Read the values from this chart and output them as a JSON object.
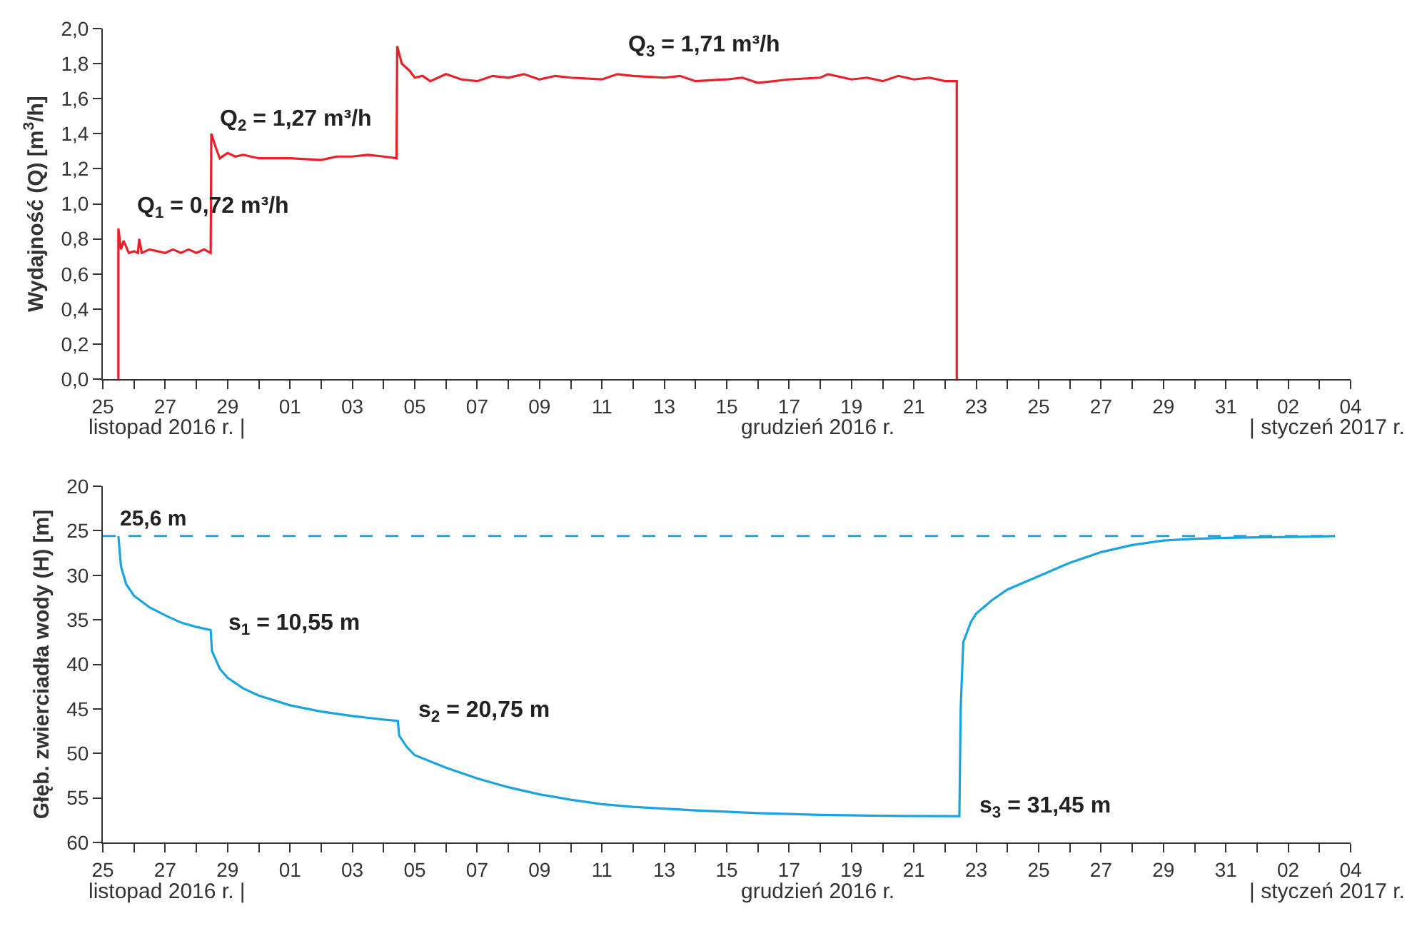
{
  "chart_data": [
    {
      "type": "line",
      "ylabel": "Wydajność (Q) [m$^{3}$/h]",
      "marker": "none",
      "line_style": "solid",
      "xlim": [
        "2016-11-25",
        "2017-01-04"
      ],
      "xticks": [
        {
          "value": "2016-11-25",
          "label": "25"
        },
        {
          "value": "2016-11-26",
          "label": null
        },
        {
          "value": "2016-11-27",
          "label": "27"
        },
        {
          "value": "2016-11-28",
          "label": null
        },
        {
          "value": "2016-11-29",
          "label": "29"
        },
        {
          "value": "2016-11-30",
          "label": null
        },
        {
          "value": "2016-12-01",
          "label": "01"
        },
        {
          "value": "2016-12-02",
          "label": null
        },
        {
          "value": "2016-12-03",
          "label": "03"
        },
        {
          "value": "2016-12-04",
          "label": null
        },
        {
          "value": "2016-12-05",
          "label": "05"
        },
        {
          "value": "2016-12-06",
          "label": null
        },
        {
          "value": "2016-12-07",
          "label": "07"
        },
        {
          "value": "2016-12-08",
          "label": null
        },
        {
          "value": "2016-12-09",
          "label": "09"
        },
        {
          "value": "2016-12-10",
          "label": null
        },
        {
          "value": "2016-12-11",
          "label": "11"
        },
        {
          "value": "2016-12-12",
          "label": null
        },
        {
          "value": "2016-12-13",
          "label": "13"
        },
        {
          "value": "2016-12-14",
          "label": null
        },
        {
          "value": "2016-12-15",
          "label": "15"
        },
        {
          "value": "2016-12-16",
          "label": null
        },
        {
          "value": "2016-12-17",
          "label": "17"
        },
        {
          "value": "2016-12-18",
          "label": null
        },
        {
          "value": "2016-12-19",
          "label": "19"
        },
        {
          "value": "2016-12-20",
          "label": null
        },
        {
          "value": "2016-12-21",
          "label": "21"
        },
        {
          "value": "2016-12-22",
          "label": null
        },
        {
          "value": "2016-12-23",
          "label": "23"
        },
        {
          "value": "2016-12-24",
          "label": null
        },
        {
          "value": "2016-12-25",
          "label": "25"
        },
        {
          "value": "2016-12-26",
          "label": null
        },
        {
          "value": "2016-12-27",
          "label": "27"
        },
        {
          "value": "2016-12-28",
          "label": null
        },
        {
          "value": "2016-12-29",
          "label": "29"
        },
        {
          "value": "2016-12-30",
          "label": null
        },
        {
          "value": "2016-12-31",
          "label": "31"
        },
        {
          "value": "2017-01-01",
          "label": null
        },
        {
          "value": "2017-01-02",
          "label": "02"
        },
        {
          "value": "2017-01-03",
          "label": null
        },
        {
          "value": "2017-01-04",
          "label": "04"
        }
      ],
      "ylim": [
        0,
        2
      ],
      "yticks": [
        {
          "value": 0,
          "label": "0,0"
        },
        {
          "value": 0.2,
          "label": "0,2"
        },
        {
          "value": 0.4,
          "label": "0,4"
        },
        {
          "value": 0.6,
          "label": "0,6"
        },
        {
          "value": 0.8,
          "label": "0,8"
        },
        {
          "value": 1,
          "label": "1,0"
        },
        {
          "value": 1.2,
          "label": "1,2"
        },
        {
          "value": 1.4,
          "label": "1,4"
        },
        {
          "value": 1.6,
          "label": "1,6"
        },
        {
          "value": 1.8,
          "label": "1,8"
        },
        {
          "value": 2,
          "label": "2,0"
        }
      ],
      "annotations": [
        {
          "text": "Q$_{1}$ = 0,72 m³/h",
          "x": "2016-11-25T20:00",
          "y": 0.72
        },
        {
          "text": "Q$_{2}$ = 1,27 m³/h",
          "x": "2016-11-28T16:00",
          "y": 1.27
        },
        {
          "text": "Q$_{3}$ = 1,71 m³/h",
          "x": "2016-12-11T18:00",
          "y": 1.71
        },
        "listopad 2016 r. |",
        "grudzień 2016 r.",
        "| styczeń 2017 r."
      ],
      "series": [
        {
          "color": "#e8202a",
          "x": [
            "2016-11-25T12:00",
            "2016-11-25T12:00",
            "2016-11-25T14:00",
            "2016-11-25T16:00",
            "2016-11-25T20:00",
            "2016-11-26T00:00",
            "2016-11-26T03:00",
            "2016-11-26T04:00",
            "2016-11-26T06:00",
            "2016-11-26T12:00",
            "2016-11-27T00:00",
            "2016-11-27T06:00",
            "2016-11-27T12:00",
            "2016-11-27T18:00",
            "2016-11-28T00:00",
            "2016-11-28T06:00",
            "2016-11-28T11:00",
            "2016-11-28T11:30",
            "2016-11-28T15:00",
            "2016-11-28T18:00",
            "2016-11-29T00:00",
            "2016-11-29T06:00",
            "2016-11-29T12:00",
            "2016-11-30T00:00",
            "2016-12-01T00:00",
            "2016-12-02T00:00",
            "2016-12-02T12:00",
            "2016-12-03T00:00",
            "2016-12-03T12:00",
            "2016-12-04T00:00",
            "2016-12-04T10:00",
            "2016-12-04T10:30",
            "2016-12-04T14:00",
            "2016-12-04T20:00",
            "2016-12-05T00:00",
            "2016-12-05T06:00",
            "2016-12-05T12:00",
            "2016-12-06T00:00",
            "2016-12-06T12:00",
            "2016-12-07T00:00",
            "2016-12-07T12:00",
            "2016-12-08T00:00",
            "2016-12-08T12:00",
            "2016-12-09T00:00",
            "2016-12-09T12:00",
            "2016-12-10T00:00",
            "2016-12-11T00:00",
            "2016-12-11T12:00",
            "2016-12-12T00:00",
            "2016-12-13T00:00",
            "2016-12-13T12:00",
            "2016-12-14T00:00",
            "2016-12-15T00:00",
            "2016-12-15T12:00",
            "2016-12-16T00:00",
            "2016-12-17T00:00",
            "2016-12-18T00:00",
            "2016-12-18T06:00",
            "2016-12-19T00:00",
            "2016-12-19T12:00",
            "2016-12-20T00:00",
            "2016-12-20T12:00",
            "2016-12-21T00:00",
            "2016-12-21T12:00",
            "2016-12-22T00:00",
            "2016-12-22T09:00",
            "2016-12-22T09:00"
          ],
          "values": [
            0,
            0.86,
            0.74,
            0.79,
            0.72,
            0.73,
            0.72,
            0.8,
            0.72,
            0.74,
            0.72,
            0.74,
            0.72,
            0.74,
            0.72,
            0.74,
            0.72,
            1.4,
            1.32,
            1.26,
            1.29,
            1.27,
            1.28,
            1.26,
            1.26,
            1.25,
            1.27,
            1.27,
            1.28,
            1.27,
            1.26,
            1.9,
            1.8,
            1.76,
            1.72,
            1.73,
            1.7,
            1.74,
            1.71,
            1.7,
            1.73,
            1.72,
            1.74,
            1.71,
            1.73,
            1.72,
            1.71,
            1.74,
            1.73,
            1.72,
            1.73,
            1.7,
            1.71,
            1.72,
            1.69,
            1.71,
            1.72,
            1.74,
            1.71,
            1.72,
            1.7,
            1.73,
            1.71,
            1.72,
            1.7,
            1.7,
            0
          ]
        }
      ]
    },
    {
      "type": "line",
      "ylabel": "Głęb. zwierciadła wody (H) [m]",
      "marker": "none",
      "line_style": "solid",
      "xlim": [
        "2016-11-25",
        "2017-01-04"
      ],
      "xticks": [
        {
          "value": "2016-11-25",
          "label": "25"
        },
        {
          "value": "2016-11-26",
          "label": null
        },
        {
          "value": "2016-11-27",
          "label": "27"
        },
        {
          "value": "2016-11-28",
          "label": null
        },
        {
          "value": "2016-11-29",
          "label": "29"
        },
        {
          "value": "2016-11-30",
          "label": null
        },
        {
          "value": "2016-12-01",
          "label": "01"
        },
        {
          "value": "2016-12-02",
          "label": null
        },
        {
          "value": "2016-12-03",
          "label": "03"
        },
        {
          "value": "2016-12-04",
          "label": null
        },
        {
          "value": "2016-12-05",
          "label": "05"
        },
        {
          "value": "2016-12-06",
          "label": null
        },
        {
          "value": "2016-12-07",
          "label": "07"
        },
        {
          "value": "2016-12-08",
          "label": null
        },
        {
          "value": "2016-12-09",
          "label": "09"
        },
        {
          "value": "2016-12-10",
          "label": null
        },
        {
          "value": "2016-12-11",
          "label": "11"
        },
        {
          "value": "2016-12-12",
          "label": null
        },
        {
          "value": "2016-12-13",
          "label": "13"
        },
        {
          "value": "2016-12-14",
          "label": null
        },
        {
          "value": "2016-12-15",
          "label": "15"
        },
        {
          "value": "2016-12-16",
          "label": null
        },
        {
          "value": "2016-12-17",
          "label": "17"
        },
        {
          "value": "2016-12-18",
          "label": null
        },
        {
          "value": "2016-12-19",
          "label": "19"
        },
        {
          "value": "2016-12-20",
          "label": null
        },
        {
          "value": "2016-12-21",
          "label": "21"
        },
        {
          "value": "2016-12-22",
          "label": null
        },
        {
          "value": "2016-12-23",
          "label": "23"
        },
        {
          "value": "2016-12-24",
          "label": null
        },
        {
          "value": "2016-12-25",
          "label": "25"
        },
        {
          "value": "2016-12-26",
          "label": null
        },
        {
          "value": "2016-12-27",
          "label": "27"
        },
        {
          "value": "2016-12-28",
          "label": null
        },
        {
          "value": "2016-12-29",
          "label": "29"
        },
        {
          "value": "2016-12-30",
          "label": null
        },
        {
          "value": "2016-12-31",
          "label": "31"
        },
        {
          "value": "2017-01-01",
          "label": null
        },
        {
          "value": "2017-01-02",
          "label": "02"
        },
        {
          "value": "2017-01-03",
          "label": null
        },
        {
          "value": "2017-01-04",
          "label": "04"
        }
      ],
      "ylim": [
        60,
        20
      ],
      "yticks": [
        20,
        25,
        30,
        35,
        40,
        45,
        50,
        55,
        60
      ],
      "ref_lines": [
        {
          "axis": "y",
          "value": 25.6,
          "label": "25,6 m",
          "color": "#1aa3e0",
          "line_style": "dashed"
        }
      ],
      "annotations": [
        {
          "text": "s$_{1}$ = 10,55 m",
          "x": "2016-11-28T11:00",
          "y": 36.15
        },
        {
          "text": "s$_{2}$ = 20,75 m",
          "x": "2016-12-04T11:00",
          "y": 46.35
        },
        {
          "text": "s$_{3}$ = 31,45 m",
          "x": "2016-12-22T11:00",
          "y": 57.05
        },
        "listopad 2016 r. |",
        "grudzień 2016 r.",
        "| styczeń 2017 r."
      ],
      "series": [
        {
          "color": "#1aa3e0",
          "x": [
            "2016-11-25T12:00",
            "2016-11-25T14:00",
            "2016-11-25T18:00",
            "2016-11-26T00:00",
            "2016-11-26T12:00",
            "2016-11-27T00:00",
            "2016-11-27T12:00",
            "2016-11-28T00:00",
            "2016-11-28T11:00",
            "2016-11-28T12:00",
            "2016-11-28T18:00",
            "2016-11-29T00:00",
            "2016-11-29T12:00",
            "2016-11-30T00:00",
            "2016-12-01T00:00",
            "2016-12-02T00:00",
            "2016-12-03T00:00",
            "2016-12-04T00:00",
            "2016-12-04T11:00",
            "2016-12-04T12:00",
            "2016-12-04T18:00",
            "2016-12-05T00:00",
            "2016-12-06T00:00",
            "2016-12-07T00:00",
            "2016-12-08T00:00",
            "2016-12-09T00:00",
            "2016-12-10T00:00",
            "2016-12-11T00:00",
            "2016-12-12T00:00",
            "2016-12-14T00:00",
            "2016-12-16T00:00",
            "2016-12-18T00:00",
            "2016-12-20T00:00",
            "2016-12-22T11:00",
            "2016-12-22T12:00",
            "2016-12-22T14:00",
            "2016-12-22T20:00",
            "2016-12-23T00:00",
            "2016-12-23T12:00",
            "2016-12-24T00:00",
            "2016-12-25T00:00",
            "2016-12-26T00:00",
            "2016-12-27T00:00",
            "2016-12-28T00:00",
            "2016-12-29T00:00",
            "2016-12-30T00:00",
            "2016-12-31T00:00",
            "2017-01-02T00:00",
            "2017-01-03T12:00"
          ],
          "values": [
            25.6,
            29,
            31,
            32.3,
            33.6,
            34.5,
            35.3,
            35.8,
            36.15,
            38.5,
            40.5,
            41.5,
            42.7,
            43.5,
            44.6,
            45.3,
            45.8,
            46.2,
            46.35,
            48,
            49.3,
            50.2,
            51.6,
            52.8,
            53.8,
            54.6,
            55.2,
            55.7,
            56.0,
            56.4,
            56.7,
            56.9,
            57.0,
            57.05,
            45,
            37.5,
            35.2,
            34.3,
            32.8,
            31.6,
            30.1,
            28.6,
            27.4,
            26.6,
            26.1,
            25.9,
            25.8,
            25.7,
            25.6
          ]
        }
      ]
    }
  ]
}
